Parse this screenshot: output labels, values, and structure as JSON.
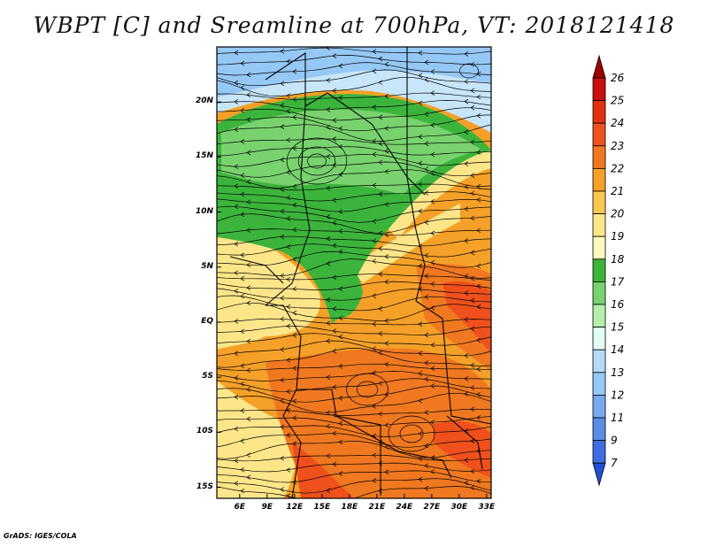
{
  "title": "WBPT [C] and Sreamline at 700hPa, VT: 2018121418",
  "credit": "GrADS: IGES/COLA",
  "map": {
    "lon_range": [
      3.5,
      33.5
    ],
    "lat_range": [
      -16,
      25
    ],
    "lat_ticks": [
      {
        "value": 20,
        "label": "20N"
      },
      {
        "value": 15,
        "label": "15N"
      },
      {
        "value": 10,
        "label": "10N"
      },
      {
        "value": 5,
        "label": "5N"
      },
      {
        "value": 0,
        "label": "EQ"
      },
      {
        "value": -5,
        "label": "5S"
      },
      {
        "value": -10,
        "label": "10S"
      },
      {
        "value": -15,
        "label": "15S"
      }
    ],
    "lon_ticks": [
      {
        "value": 6,
        "label": "6E"
      },
      {
        "value": 9,
        "label": "9E"
      },
      {
        "value": 12,
        "label": "12E"
      },
      {
        "value": 15,
        "label": "15E"
      },
      {
        "value": 18,
        "label": "18E"
      },
      {
        "value": 21,
        "label": "21E"
      },
      {
        "value": 24,
        "label": "24E"
      },
      {
        "value": 27,
        "label": "27E"
      },
      {
        "value": 30,
        "label": "30E"
      },
      {
        "value": 33,
        "label": "33E"
      }
    ]
  },
  "colorbar": {
    "levels": [
      {
        "label": "26",
        "color": "#a00000"
      },
      {
        "label": "25",
        "color": "#c8100a"
      },
      {
        "label": "24",
        "color": "#e1300f"
      },
      {
        "label": "23",
        "color": "#f0501c"
      },
      {
        "label": "22",
        "color": "#f07820"
      },
      {
        "label": "21",
        "color": "#f5a028"
      },
      {
        "label": "20",
        "color": "#fac850"
      },
      {
        "label": "19",
        "color": "#fde68a"
      },
      {
        "label": "18",
        "color": "#fafac0"
      },
      {
        "label": "17",
        "color": "#3cb43c"
      },
      {
        "label": "16",
        "color": "#78d26e"
      },
      {
        "label": "15",
        "color": "#b4f0aa"
      },
      {
        "label": "14",
        "color": "#e1fff5"
      },
      {
        "label": "13",
        "color": "#b4dcfa"
      },
      {
        "label": "12",
        "color": "#96c8f5"
      },
      {
        "label": "11",
        "color": "#78aaf0"
      },
      {
        "label": "9",
        "color": "#5a8ce6"
      },
      {
        "label": "7",
        "color": "#3c6ee1"
      }
    ],
    "bottom_color": "#1e50d2"
  },
  "field_regions": [
    {
      "name": "north-blue",
      "color": "#96c8f5"
    },
    {
      "name": "blue-light",
      "color": "#c8e6fa"
    },
    {
      "name": "green-band",
      "color": "#3cb43c"
    },
    {
      "name": "light-green",
      "color": "#78d26e"
    },
    {
      "name": "pale-yellow",
      "color": "#fde68a"
    },
    {
      "name": "orange-main",
      "color": "#f5a028"
    },
    {
      "name": "deep-orange",
      "color": "#f07820"
    },
    {
      "name": "red-orange",
      "color": "#f0501c"
    }
  ]
}
